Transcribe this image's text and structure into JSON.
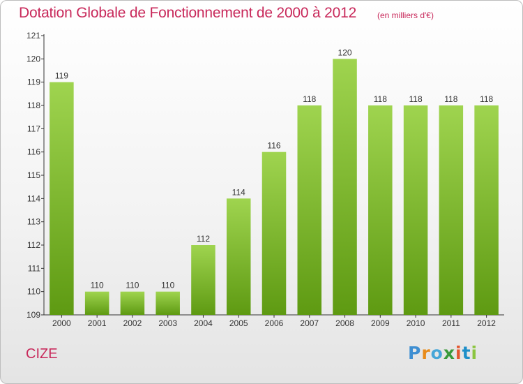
{
  "header": {
    "title": "Dotation Globale de Fonctionnement de 2000 à 2012",
    "unit_note": "(en milliers d'€)"
  },
  "footer": {
    "commune": "CIZE",
    "logo_text": [
      "P",
      "r",
      "o",
      "x",
      "i",
      "t",
      "i"
    ]
  },
  "colors": {
    "accent": "#c8285a",
    "bar_top": "#9fd44f",
    "bar_bottom": "#5e9a12"
  },
  "chart_data": {
    "type": "bar",
    "categories": [
      "2000",
      "2001",
      "2002",
      "2003",
      "2004",
      "2005",
      "2006",
      "2007",
      "2008",
      "2009",
      "2010",
      "2011",
      "2012"
    ],
    "values": [
      119,
      110,
      110,
      110,
      112,
      114,
      116,
      118,
      120,
      118,
      118,
      118,
      118
    ],
    "ylim": [
      109,
      121
    ],
    "yticks": [
      109,
      110,
      111,
      112,
      113,
      114,
      115,
      116,
      117,
      118,
      119,
      120,
      121
    ],
    "grid": false,
    "data_labels": true
  }
}
